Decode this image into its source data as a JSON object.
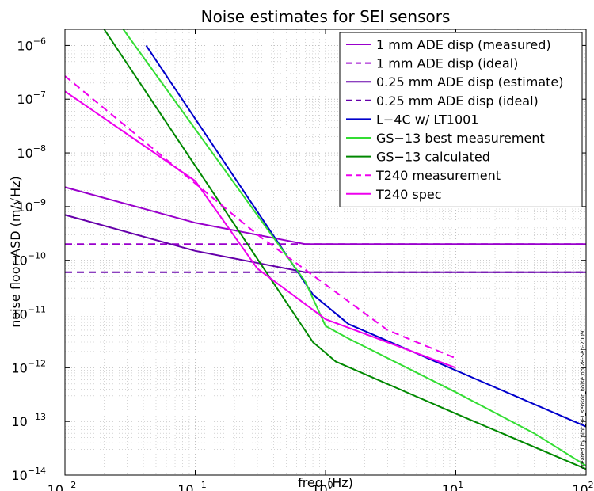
{
  "chart_data": {
    "type": "line",
    "title": "Noise estimates for SEI sensors",
    "xlabel": "freq (Hz)",
    "ylabel": "noise floor ASD (m/√Hz)",
    "xscale": "log",
    "yscale": "log",
    "xlim": [
      0.01,
      100
    ],
    "ylim": [
      1e-14,
      2e-06
    ],
    "grid": true,
    "legend_position": "top-right",
    "x_ticks": [
      {
        "value": 0.01,
        "base": "10",
        "exp": "−2"
      },
      {
        "value": 0.1,
        "base": "10",
        "exp": "−1"
      },
      {
        "value": 1,
        "base": "10",
        "exp": "0"
      },
      {
        "value": 10,
        "base": "10",
        "exp": "1"
      },
      {
        "value": 100,
        "base": "10",
        "exp": "2"
      }
    ],
    "y_ticks": [
      {
        "value": 1e-14,
        "base": "10",
        "exp": "−14"
      },
      {
        "value": 1e-13,
        "base": "10",
        "exp": "−13"
      },
      {
        "value": 1e-12,
        "base": "10",
        "exp": "−12"
      },
      {
        "value": 1e-11,
        "base": "10",
        "exp": "−11"
      },
      {
        "value": 1e-10,
        "base": "10",
        "exp": "−10"
      },
      {
        "value": 1e-09,
        "base": "10",
        "exp": "−9"
      },
      {
        "value": 1e-08,
        "base": "10",
        "exp": "−8"
      },
      {
        "value": 1e-07,
        "base": "10",
        "exp": "−7"
      },
      {
        "value": 1e-06,
        "base": "10",
        "exp": "−6"
      }
    ],
    "side_annotation": "created by plot_SEI_sensor_noise on 28-Sep-2009",
    "series": [
      {
        "name": "1 mm ADE disp (measured)",
        "color": "#9900cc",
        "dash": "solid",
        "x": [
          0.01,
          0.1,
          0.7,
          100
        ],
        "y": [
          2.3e-09,
          5e-10,
          2e-10,
          2e-10
        ]
      },
      {
        "name": "1 mm ADE disp (ideal)",
        "color": "#9900cc",
        "dash": "dashed",
        "x": [
          0.01,
          100
        ],
        "y": [
          2e-10,
          2e-10
        ]
      },
      {
        "name": "0.25 mm ADE disp (estimate)",
        "color": "#6600aa",
        "dash": "solid",
        "x": [
          0.01,
          0.1,
          0.7,
          100
        ],
        "y": [
          7e-10,
          1.5e-10,
          6e-11,
          6e-11
        ]
      },
      {
        "name": "0.25 mm ADE disp (ideal)",
        "color": "#6600aa",
        "dash": "dashed",
        "x": [
          0.01,
          100
        ],
        "y": [
          6e-11,
          6e-11
        ]
      },
      {
        "name": "L−4C w/ LT1001",
        "color": "#0000cc",
        "dash": "solid",
        "x": [
          0.042,
          0.8,
          1.5,
          100
        ],
        "y": [
          1e-06,
          2.3e-11,
          6.5e-12,
          8e-14
        ]
      },
      {
        "name": "GS−13 best measurement",
        "color": "#33dd33",
        "dash": "solid",
        "x": [
          0.028,
          0.7,
          1.0,
          1.5,
          10,
          40,
          100
        ],
        "y": [
          2e-06,
          4e-11,
          6e-12,
          3.5e-12,
          3.5e-13,
          6e-14,
          1.5e-14
        ]
      },
      {
        "name": "GS−13 calculated",
        "color": "#008800",
        "dash": "solid",
        "x": [
          0.02,
          0.8,
          1.2,
          10,
          100
        ],
        "y": [
          2e-06,
          3e-12,
          1.3e-12,
          1.4e-13,
          1.3e-14
        ]
      },
      {
        "name": "T240 measurement",
        "color": "#ee00ee",
        "dash": "dashed",
        "x": [
          0.01,
          0.3,
          3.0,
          10
        ],
        "y": [
          2.7e-07,
          3e-10,
          5e-12,
          1.5e-12
        ]
      },
      {
        "name": "T240 spec",
        "color": "#ee00ee",
        "dash": "solid",
        "x": [
          0.01,
          0.1,
          0.3,
          1.0,
          10
        ],
        "y": [
          1.4e-07,
          3e-09,
          7e-11,
          8e-12,
          1e-12
        ]
      }
    ]
  }
}
